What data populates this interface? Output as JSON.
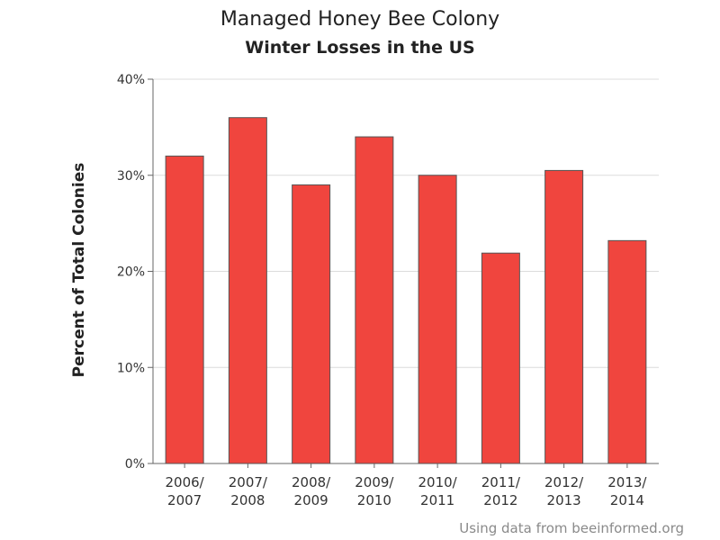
{
  "chart_data": {
    "type": "bar",
    "title": "Managed Honey Bee Colony",
    "subtitle": "Winter Losses in the US",
    "xlabel": "",
    "ylabel": "Percent of Total Colonies",
    "categories": [
      "2006/2007",
      "2007/2008",
      "2008/2009",
      "2009/2010",
      "2010/2011",
      "2011/2012",
      "2012/2013",
      "2013/2014"
    ],
    "category_lines": [
      [
        "2006/",
        "2007"
      ],
      [
        "2007/",
        "2008"
      ],
      [
        "2008/",
        "2009"
      ],
      [
        "2009/",
        "2010"
      ],
      [
        "2010/",
        "2011"
      ],
      [
        "2011/",
        "2012"
      ],
      [
        "2012/",
        "2013"
      ],
      [
        "2013/",
        "2014"
      ]
    ],
    "values": [
      32,
      36,
      29,
      34,
      30,
      21.9,
      30.5,
      23.2
    ],
    "unit": "%",
    "ylim": [
      0,
      40
    ],
    "yticks": [
      0,
      10,
      20,
      30,
      40
    ],
    "ytick_labels": [
      "0%",
      "10%",
      "20%",
      "30%",
      "40%"
    ],
    "grid": true,
    "legend": "none",
    "bar_color": "#f0453e",
    "bar_stroke": "#555555"
  },
  "footnote": "Using data from beeinformed.org"
}
